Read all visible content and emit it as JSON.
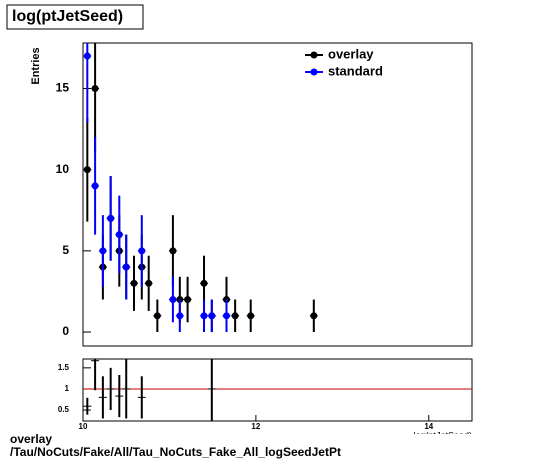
{
  "chart_data": [
    {
      "type": "scatter",
      "title": "log(ptJetSeed)",
      "ylabel": "Entries",
      "xlabel": "log(ptJetSeed)",
      "xlim": [
        10,
        14.5
      ],
      "ylim": [
        -0.86,
        17.8
      ],
      "yticks": [
        0,
        5,
        10,
        15
      ],
      "series": [
        {
          "name": "overlay",
          "color": "#000000",
          "x": [
            10.05,
            10.14,
            10.23,
            10.32,
            10.42,
            10.5,
            10.59,
            10.68,
            10.76,
            10.86,
            11.04,
            11.12,
            11.21,
            11.4,
            11.49,
            11.66,
            11.76,
            11.94,
            12.67
          ],
          "values": [
            10,
            15,
            4,
            7,
            5,
            4,
            3,
            4,
            3,
            1,
            5,
            2,
            2,
            3,
            1,
            2,
            1,
            1,
            1
          ],
          "errors": [
            3.2,
            3.9,
            2,
            2.6,
            2.2,
            2,
            1.7,
            2,
            1.7,
            1,
            2.2,
            1.4,
            1.4,
            1.7,
            1,
            1.4,
            1,
            1,
            1
          ]
        },
        {
          "name": "standard",
          "color": "#0000ff",
          "x": [
            10.05,
            10.14,
            10.23,
            10.32,
            10.42,
            10.5,
            10.68,
            11.04,
            11.12,
            11.4,
            11.49,
            11.66
          ],
          "values": [
            17,
            9,
            5,
            7,
            6,
            4,
            5,
            2,
            1,
            1,
            1,
            1
          ],
          "errors": [
            4.1,
            3,
            2.2,
            2.6,
            2.4,
            2,
            2.2,
            1.4,
            1,
            1,
            1,
            1
          ]
        }
      ]
    },
    {
      "type": "scatter",
      "xlim": [
        10,
        14.5
      ],
      "ylim": [
        0.24,
        1.71
      ],
      "yticks": [
        0.5,
        1,
        1.5
      ],
      "xticks": [
        10,
        12,
        14
      ],
      "hline": 1,
      "hline_color": "#cc0000",
      "series": [
        {
          "color": "#000000",
          "x": [
            10.05,
            10.14,
            10.23,
            10.32,
            10.42,
            10.5,
            10.68,
            11.49
          ],
          "values": [
            0.59,
            1.67,
            0.8,
            1.0,
            0.83,
            1.0,
            0.8,
            1.0
          ],
          "errors": [
            0.2,
            0.7,
            0.5,
            0.5,
            0.5,
            0.7,
            0.5,
            1.4
          ]
        }
      ]
    }
  ],
  "footer": {
    "line1": "overlay",
    "line2": "/Tau/NoCuts/Fake/All/Tau_NoCuts_Fake_All_logSeedJetPt"
  }
}
